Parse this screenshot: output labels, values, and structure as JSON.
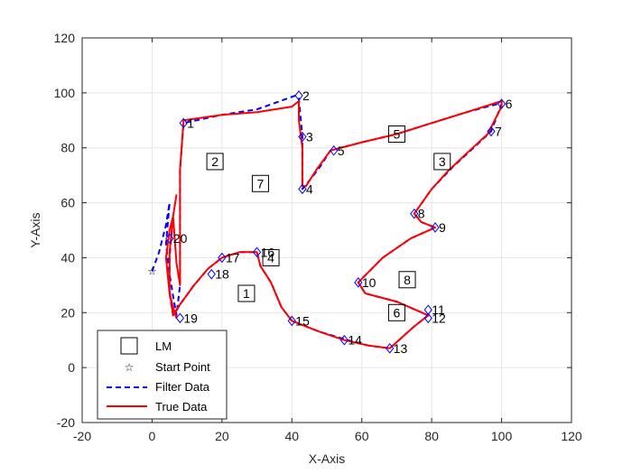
{
  "chart_data": {
    "type": "line",
    "xlabel": "X-Axis",
    "ylabel": "Y-Axis",
    "xlim": [
      -20,
      120
    ],
    "ylim": [
      -20,
      120
    ],
    "xticks": [
      -20,
      0,
      20,
      40,
      60,
      80,
      100,
      120
    ],
    "yticks": [
      -20,
      0,
      20,
      40,
      60,
      80,
      100,
      120
    ],
    "grid": true,
    "legend_position": "bottom-left",
    "legend": {
      "lm": "LM",
      "start": "Start Point",
      "filter": "Filter Data",
      "true": "True Data"
    },
    "landmarks": [
      {
        "label": "1",
        "x": 27,
        "y": 27
      },
      {
        "label": "2",
        "x": 18,
        "y": 75
      },
      {
        "label": "3",
        "x": 83,
        "y": 75
      },
      {
        "label": "4",
        "x": 34,
        "y": 40
      },
      {
        "label": "5",
        "x": 70,
        "y": 85
      },
      {
        "label": "6",
        "x": 70,
        "y": 20
      },
      {
        "label": "7",
        "x": 31,
        "y": 67
      },
      {
        "label": "8",
        "x": 73,
        "y": 32
      }
    ],
    "start_point": {
      "x": 0,
      "y": 35
    },
    "waypoints": [
      {
        "label": "1",
        "x": 9,
        "y": 89
      },
      {
        "label": "2",
        "x": 42,
        "y": 99
      },
      {
        "label": "3",
        "x": 43,
        "y": 84
      },
      {
        "label": "4",
        "x": 43,
        "y": 65
      },
      {
        "label": "5",
        "x": 52,
        "y": 79
      },
      {
        "label": "6",
        "x": 100,
        "y": 96
      },
      {
        "label": "7",
        "x": 97,
        "y": 86
      },
      {
        "label": "8",
        "x": 75,
        "y": 56
      },
      {
        "label": "9",
        "x": 81,
        "y": 51
      },
      {
        "label": "10",
        "x": 59,
        "y": 31
      },
      {
        "label": "11",
        "x": 79,
        "y": 21
      },
      {
        "label": "12",
        "x": 79,
        "y": 18
      },
      {
        "label": "13",
        "x": 68,
        "y": 7
      },
      {
        "label": "14",
        "x": 55,
        "y": 10
      },
      {
        "label": "15",
        "x": 40,
        "y": 17
      },
      {
        "label": "16",
        "x": 30,
        "y": 42
      },
      {
        "label": "17",
        "x": 20,
        "y": 40
      },
      {
        "label": "18",
        "x": 17,
        "y": 34
      },
      {
        "label": "19",
        "x": 8,
        "y": 18
      },
      {
        "label": "20",
        "x": 5,
        "y": 47
      }
    ],
    "series": [
      {
        "name": "Filter Data",
        "color": "#0000ff",
        "style": "dashed",
        "x": [
          0,
          2,
          3,
          4,
          5,
          4,
          5,
          6,
          7,
          8,
          8,
          9,
          20,
          30,
          41,
          42,
          43,
          43,
          43,
          43,
          45,
          48,
          51,
          60,
          70,
          80,
          90,
          99,
          100,
          97,
          92,
          86,
          80,
          75,
          77,
          81,
          74,
          66,
          59,
          61,
          70,
          79,
          75,
          68,
          62,
          56,
          48,
          40,
          37,
          34,
          31,
          30,
          25,
          20,
          16,
          12,
          8,
          6,
          5,
          5,
          6
        ],
        "y": [
          35,
          42,
          47,
          52,
          60,
          45,
          34,
          26,
          19,
          30,
          72,
          89,
          92,
          94,
          99,
          98,
          84,
          75,
          65,
          65,
          68,
          73,
          79,
          82,
          85,
          89,
          93,
          96,
          96,
          86,
          80,
          73,
          65,
          56,
          53,
          51,
          47,
          40,
          31,
          27,
          24,
          19,
          15,
          7,
          8,
          10,
          13,
          17,
          22,
          31,
          37,
          42,
          42,
          40,
          36,
          30,
          23,
          19,
          27,
          40,
          55
        ]
      },
      {
        "name": "True Data",
        "color": "#ff0000",
        "style": "solid",
        "x": [
          7,
          6,
          5,
          4,
          5,
          6,
          7,
          8,
          8,
          9,
          20,
          30,
          40,
          42,
          42,
          43,
          43,
          43,
          44,
          47,
          51,
          60,
          70,
          80,
          90,
          100,
          100,
          96,
          90,
          85,
          80,
          75,
          77,
          81,
          74,
          66,
          59,
          61,
          70,
          79,
          75,
          68,
          62,
          55,
          48,
          40,
          37,
          34,
          31,
          30,
          25,
          20,
          16,
          12,
          8,
          6,
          5,
          5,
          6,
          7
        ],
        "y": [
          18,
          22,
          27,
          40,
          50,
          55,
          38,
          30,
          72,
          90,
          92,
          93,
          95,
          97,
          90,
          80,
          70,
          66,
          66,
          72,
          79,
          82,
          85,
          89,
          93,
          97,
          95,
          85,
          78,
          72,
          65,
          56,
          53,
          51,
          47,
          40,
          31,
          27,
          24,
          19,
          15,
          7,
          8,
          10,
          13,
          17,
          22,
          31,
          37,
          42,
          42,
          40,
          36,
          30,
          23,
          19,
          28,
          42,
          55,
          63
        ]
      }
    ]
  }
}
